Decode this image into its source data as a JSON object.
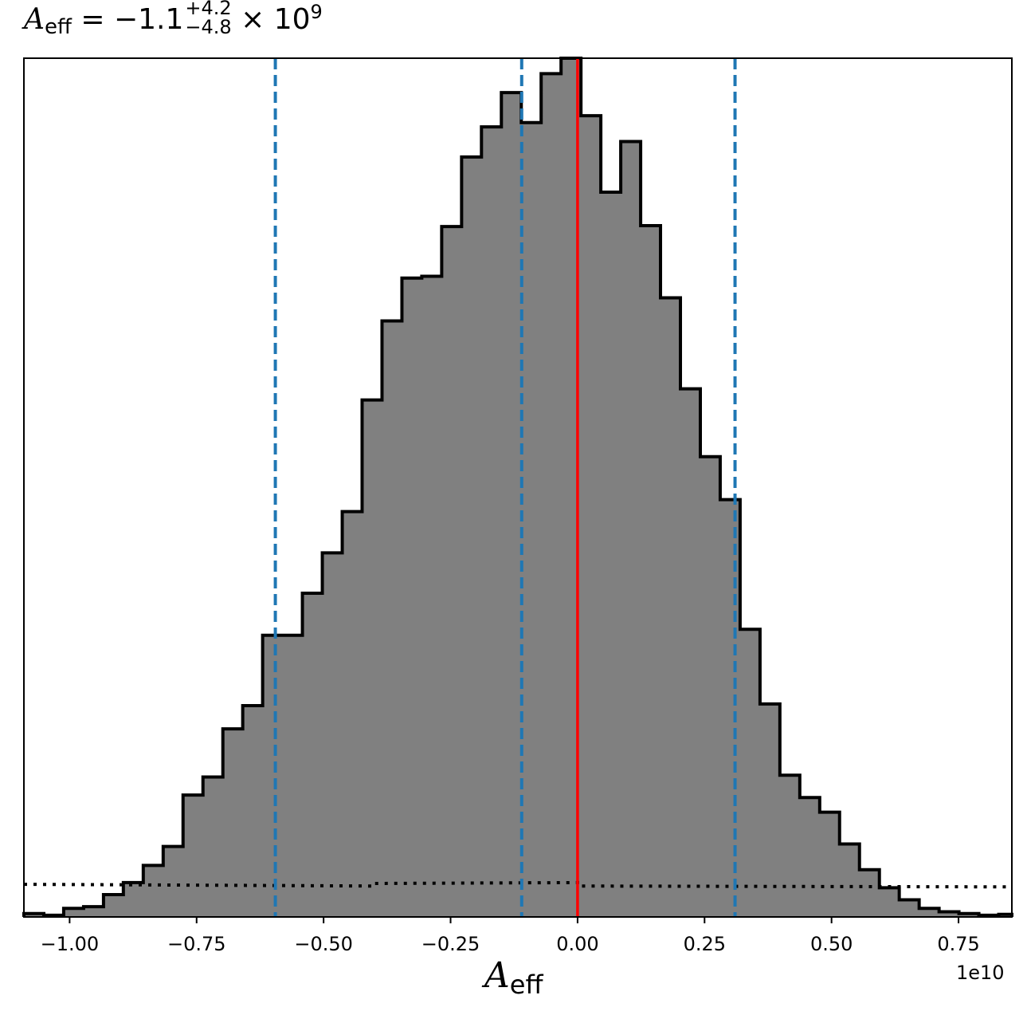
{
  "chart_data": {
    "type": "histogram",
    "title_parts": {
      "symbol": "A",
      "subscript": "eff",
      "median_text": " = −1.1",
      "upper": "+4.2",
      "lower": "−4.8",
      "scale_text": " × 10",
      "scale_exp": "9"
    },
    "xlabel_parts": {
      "symbol": "A",
      "subscript": "eff"
    },
    "x_offset_label": "1e10",
    "xlim": [
      -1.09,
      0.855
    ],
    "ylim": [
      0,
      1.0
    ],
    "xticks": [
      -1.0,
      -0.75,
      -0.5,
      -0.25,
      0.0,
      0.25,
      0.5,
      0.75
    ],
    "xtick_labels": [
      "−1.00",
      "−0.75",
      "−0.50",
      "−0.25",
      "0.00",
      "0.25",
      "0.50",
      "0.75"
    ],
    "bin_edges": [
      -1.09,
      -1.0508,
      -1.0117,
      -0.9725,
      -0.9333,
      -0.8942,
      -0.855,
      -0.8158,
      -0.7767,
      -0.7375,
      -0.6983,
      -0.6592,
      -0.62,
      -0.5808,
      -0.5417,
      -0.5025,
      -0.4633,
      -0.4242,
      -0.385,
      -0.3458,
      -0.3067,
      -0.2675,
      -0.2283,
      -0.1892,
      -0.15,
      -0.1108,
      -0.0717,
      -0.0325,
      0.0067,
      0.0458,
      0.085,
      0.1242,
      0.1633,
      0.2025,
      0.2417,
      0.2808,
      0.32,
      0.3592,
      0.3983,
      0.4375,
      0.4767,
      0.5158,
      0.555,
      0.5942,
      0.6333,
      0.6725,
      0.7117,
      0.7508,
      0.79,
      0.8292,
      0.855
    ],
    "bin_heights": [
      0.004,
      0.002,
      0.01,
      0.012,
      0.026,
      0.04,
      0.06,
      0.082,
      0.142,
      0.163,
      0.219,
      0.246,
      0.328,
      0.328,
      0.377,
      0.424,
      0.472,
      0.602,
      0.694,
      0.744,
      0.746,
      0.804,
      0.885,
      0.92,
      0.96,
      0.925,
      0.982,
      1.0,
      0.933,
      0.844,
      0.903,
      0.805,
      0.721,
      0.615,
      0.536,
      0.486,
      0.335,
      0.248,
      0.165,
      0.139,
      0.122,
      0.085,
      0.055,
      0.034,
      0.02,
      0.01,
      0.006,
      0.004,
      0.002,
      0.003
    ],
    "hist_fill": "#808080",
    "hist_edge": "#000000",
    "quantile_lines": {
      "values": [
        -0.595,
        -0.11,
        0.31
      ],
      "color": "#1f77b4",
      "style": "dashed"
    },
    "truth_line": {
      "value": 0.0,
      "color": "#ff0000"
    },
    "prior": {
      "x": [
        -1.09,
        -0.4,
        -0.4,
        0.0,
        0.0,
        0.855
      ],
      "y": [
        0.038,
        0.036,
        0.039,
        0.04,
        0.036,
        0.035
      ],
      "style": "dotted",
      "color": "#000000"
    }
  }
}
